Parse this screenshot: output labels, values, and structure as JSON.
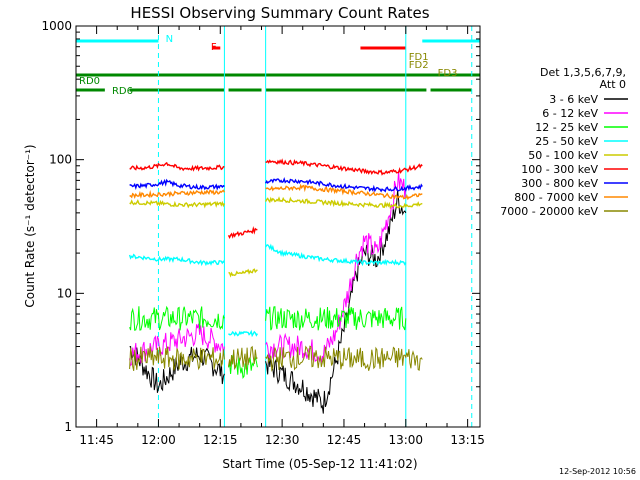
{
  "chart_data": {
    "type": "line",
    "title": "HESSI Observing Summary Count Rates",
    "xlabel": "Start Time (05-Sep-12 11:41:02)",
    "ylabel": "Count Rate (s⁻¹ detector⁻¹)",
    "y_scale": "log",
    "ylim": [
      1,
      1000
    ],
    "xlim": [
      "11:40",
      "13:18"
    ],
    "x_ticks": [
      "11:45",
      "12:00",
      "12:15",
      "12:30",
      "12:45",
      "13:00",
      "13:15"
    ],
    "y_ticks": [
      "1",
      "10",
      "100",
      "1000"
    ],
    "legend": {
      "placement": "right",
      "header": [
        "Det 1,3,5,6,7,9,",
        "Att 0"
      ]
    },
    "series": [
      {
        "name": "3 - 6 keV",
        "color": "#000000",
        "segments": [
          {
            "x": [
              "11:53",
              "12:00",
              "12:05",
              "12:10",
              "12:16"
            ],
            "y": [
              4,
              2,
              3,
              3.5,
              2.5
            ]
          },
          {
            "x": [
              "12:26",
              "12:30",
              "12:35",
              "12:40",
              "12:43",
              "12:46",
              "12:48",
              "12:50",
              "12:53",
              "12:56",
              "12:58",
              "13:00"
            ],
            "y": [
              3,
              2.5,
              2,
              1.5,
              3,
              7,
              14,
              20,
              18,
              30,
              50,
              40
            ]
          }
        ]
      },
      {
        "name": "6 - 12 keV",
        "color": "#ff00ff",
        "segments": [
          {
            "x": [
              "11:53",
              "12:00",
              "12:05",
              "12:10",
              "12:16"
            ],
            "y": [
              3.5,
              4,
              4.5,
              5,
              4
            ]
          },
          {
            "x": [
              "12:26",
              "12:30",
              "12:35",
              "12:40",
              "12:43",
              "12:46",
              "12:48",
              "12:50",
              "12:53",
              "12:56",
              "12:58",
              "13:00"
            ],
            "y": [
              4,
              4,
              4,
              3.5,
              5,
              10,
              18,
              25,
              20,
              40,
              70,
              60
            ]
          }
        ]
      },
      {
        "name": "12 - 25 keV",
        "color": "#00ff00",
        "segments": [
          {
            "x": [
              "11:53",
              "12:00",
              "12:05",
              "12:10",
              "12:16"
            ],
            "y": [
              6.5,
              6.5,
              6.5,
              6.5,
              6.5
            ]
          },
          {
            "x": [
              "12:17",
              "12:20",
              "12:24"
            ],
            "y": [
              3,
              2.8,
              2.8
            ]
          },
          {
            "x": [
              "12:26",
              "12:35",
              "12:45",
              "12:55",
              "13:00"
            ],
            "y": [
              6.5,
              6.5,
              6.5,
              6.5,
              6.5
            ]
          }
        ]
      },
      {
        "name": "25 - 50 keV",
        "color": "#00ffff",
        "segments": [
          {
            "x": [
              "11:53",
              "12:00",
              "12:05",
              "12:10",
              "12:16"
            ],
            "y": [
              19,
              18,
              18,
              17,
              17
            ]
          },
          {
            "x": [
              "12:17",
              "12:20",
              "12:24"
            ],
            "y": [
              5,
              5,
              5
            ]
          },
          {
            "x": [
              "12:26",
              "12:30",
              "12:40",
              "12:50",
              "13:00"
            ],
            "y": [
              23,
              20,
              18,
              17,
              17
            ]
          }
        ]
      },
      {
        "name": "50 - 100 keV",
        "color": "#cccc00",
        "segments": [
          {
            "x": [
              "11:53",
              "12:00",
              "12:05",
              "12:10",
              "12:16"
            ],
            "y": [
              48,
              47,
              46,
              46,
              47
            ]
          },
          {
            "x": [
              "12:17",
              "12:20",
              "12:24"
            ],
            "y": [
              14,
              14,
              15
            ]
          },
          {
            "x": [
              "12:26",
              "12:30",
              "12:40",
              "12:50",
              "13:00",
              "13:04"
            ],
            "y": [
              50,
              50,
              48,
              46,
              45,
              47
            ]
          }
        ]
      },
      {
        "name": "100 - 300 keV",
        "color": "#ff0000",
        "segments": [
          {
            "x": [
              "11:53",
              "11:57",
              "12:00",
              "12:02",
              "12:05",
              "12:10",
              "12:16"
            ],
            "y": [
              86,
              87,
              90,
              94,
              86,
              86,
              88
            ]
          },
          {
            "x": [
              "12:17",
              "12:20",
              "12:24"
            ],
            "y": [
              27,
              28,
              30
            ]
          },
          {
            "x": [
              "12:26",
              "12:30",
              "12:35",
              "12:40",
              "12:45",
              "12:50",
              "12:55",
              "13:00",
              "13:04"
            ],
            "y": [
              98,
              96,
              94,
              90,
              86,
              82,
              80,
              84,
              90
            ]
          }
        ]
      },
      {
        "name": "300 - 800 keV",
        "color": "#0000ff",
        "segments": [
          {
            "x": [
              "11:53",
              "11:57",
              "12:00",
              "12:02",
              "12:05",
              "12:10",
              "12:16"
            ],
            "y": [
              63,
              64,
              66,
              68,
              64,
              62,
              63
            ]
          },
          {
            "x": [
              "12:26",
              "12:30",
              "12:35",
              "12:40",
              "12:45",
              "12:50",
              "12:55",
              "13:00",
              "13:04"
            ],
            "y": [
              68,
              70,
              69,
              66,
              63,
              61,
              60,
              61,
              63
            ]
          }
        ]
      },
      {
        "name": "800 - 7000 keV",
        "color": "#ff8800",
        "segments": [
          {
            "x": [
              "11:53",
              "12:00",
              "12:05",
              "12:10",
              "12:16"
            ],
            "y": [
              54,
              55,
              56,
              57,
              57
            ]
          },
          {
            "x": [
              "12:26",
              "12:30",
              "12:35",
              "12:40",
              "12:45",
              "12:50",
              "12:55",
              "13:00",
              "13:04"
            ],
            "y": [
              60,
              61,
              62,
              60,
              58,
              56,
              54,
              52,
              55
            ]
          }
        ]
      },
      {
        "name": "7000 - 20000 keV",
        "color": "#888800",
        "segments": [
          {
            "x": [
              "11:53",
              "12:00",
              "12:05",
              "12:10",
              "12:16"
            ],
            "y": [
              3.2,
              3.3,
              3.2,
              3.3,
              3.2
            ]
          },
          {
            "x": [
              "12:17",
              "12:20",
              "12:24"
            ],
            "y": [
              3.3,
              3.2,
              3.3
            ]
          },
          {
            "x": [
              "12:26",
              "12:30",
              "12:40",
              "12:50",
              "13:00",
              "13:04"
            ],
            "y": [
              3.2,
              3.3,
              3.3,
              3.2,
              3.3,
              3.2
            ]
          }
        ]
      }
    ],
    "flag_bars": [
      {
        "label": "N",
        "color": "#00ffff",
        "label_x": "12:01",
        "segments": [
          [
            "11:40",
            "12:00"
          ],
          [
            "13:04",
            "13:18"
          ]
        ]
      },
      {
        "label": "F",
        "color": "#ff0000",
        "label_x": "12:12",
        "segments": [
          [
            "12:13",
            "12:15"
          ],
          [
            "12:49",
            "13:00"
          ]
        ]
      },
      {
        "label": "FD1",
        "color": "#888800",
        "label_x": "13:00",
        "segments": []
      },
      {
        "label": "FD2",
        "color": "#888800",
        "label_x": "13:00",
        "segments": []
      },
      {
        "label": "FD3",
        "color": "#888800",
        "label_x": "13:07",
        "segments": []
      },
      {
        "label": "RD0",
        "color": "#008800",
        "label_x": "11:40",
        "segments": [
          [
            "11:40",
            "13:18"
          ]
        ]
      },
      {
        "label": "RD6",
        "color": "#008800",
        "label_x": "11:48",
        "segments": [
          [
            "11:40",
            "11:47"
          ],
          [
            "11:53",
            "12:16"
          ],
          [
            "12:17",
            "12:25"
          ],
          [
            "12:26",
            "13:05"
          ],
          [
            "13:06",
            "13:16"
          ]
        ]
      }
    ],
    "vertical_markers": [
      {
        "color": "#00ffff",
        "style": "dashed",
        "x": [
          "12:00",
          "13:16"
        ]
      },
      {
        "color": "#00ffff",
        "style": "solid",
        "x": [
          "12:16",
          "12:26",
          "13:00"
        ]
      }
    ]
  },
  "footer": {
    "timestamp": "12-Sep-2012 10:56"
  }
}
